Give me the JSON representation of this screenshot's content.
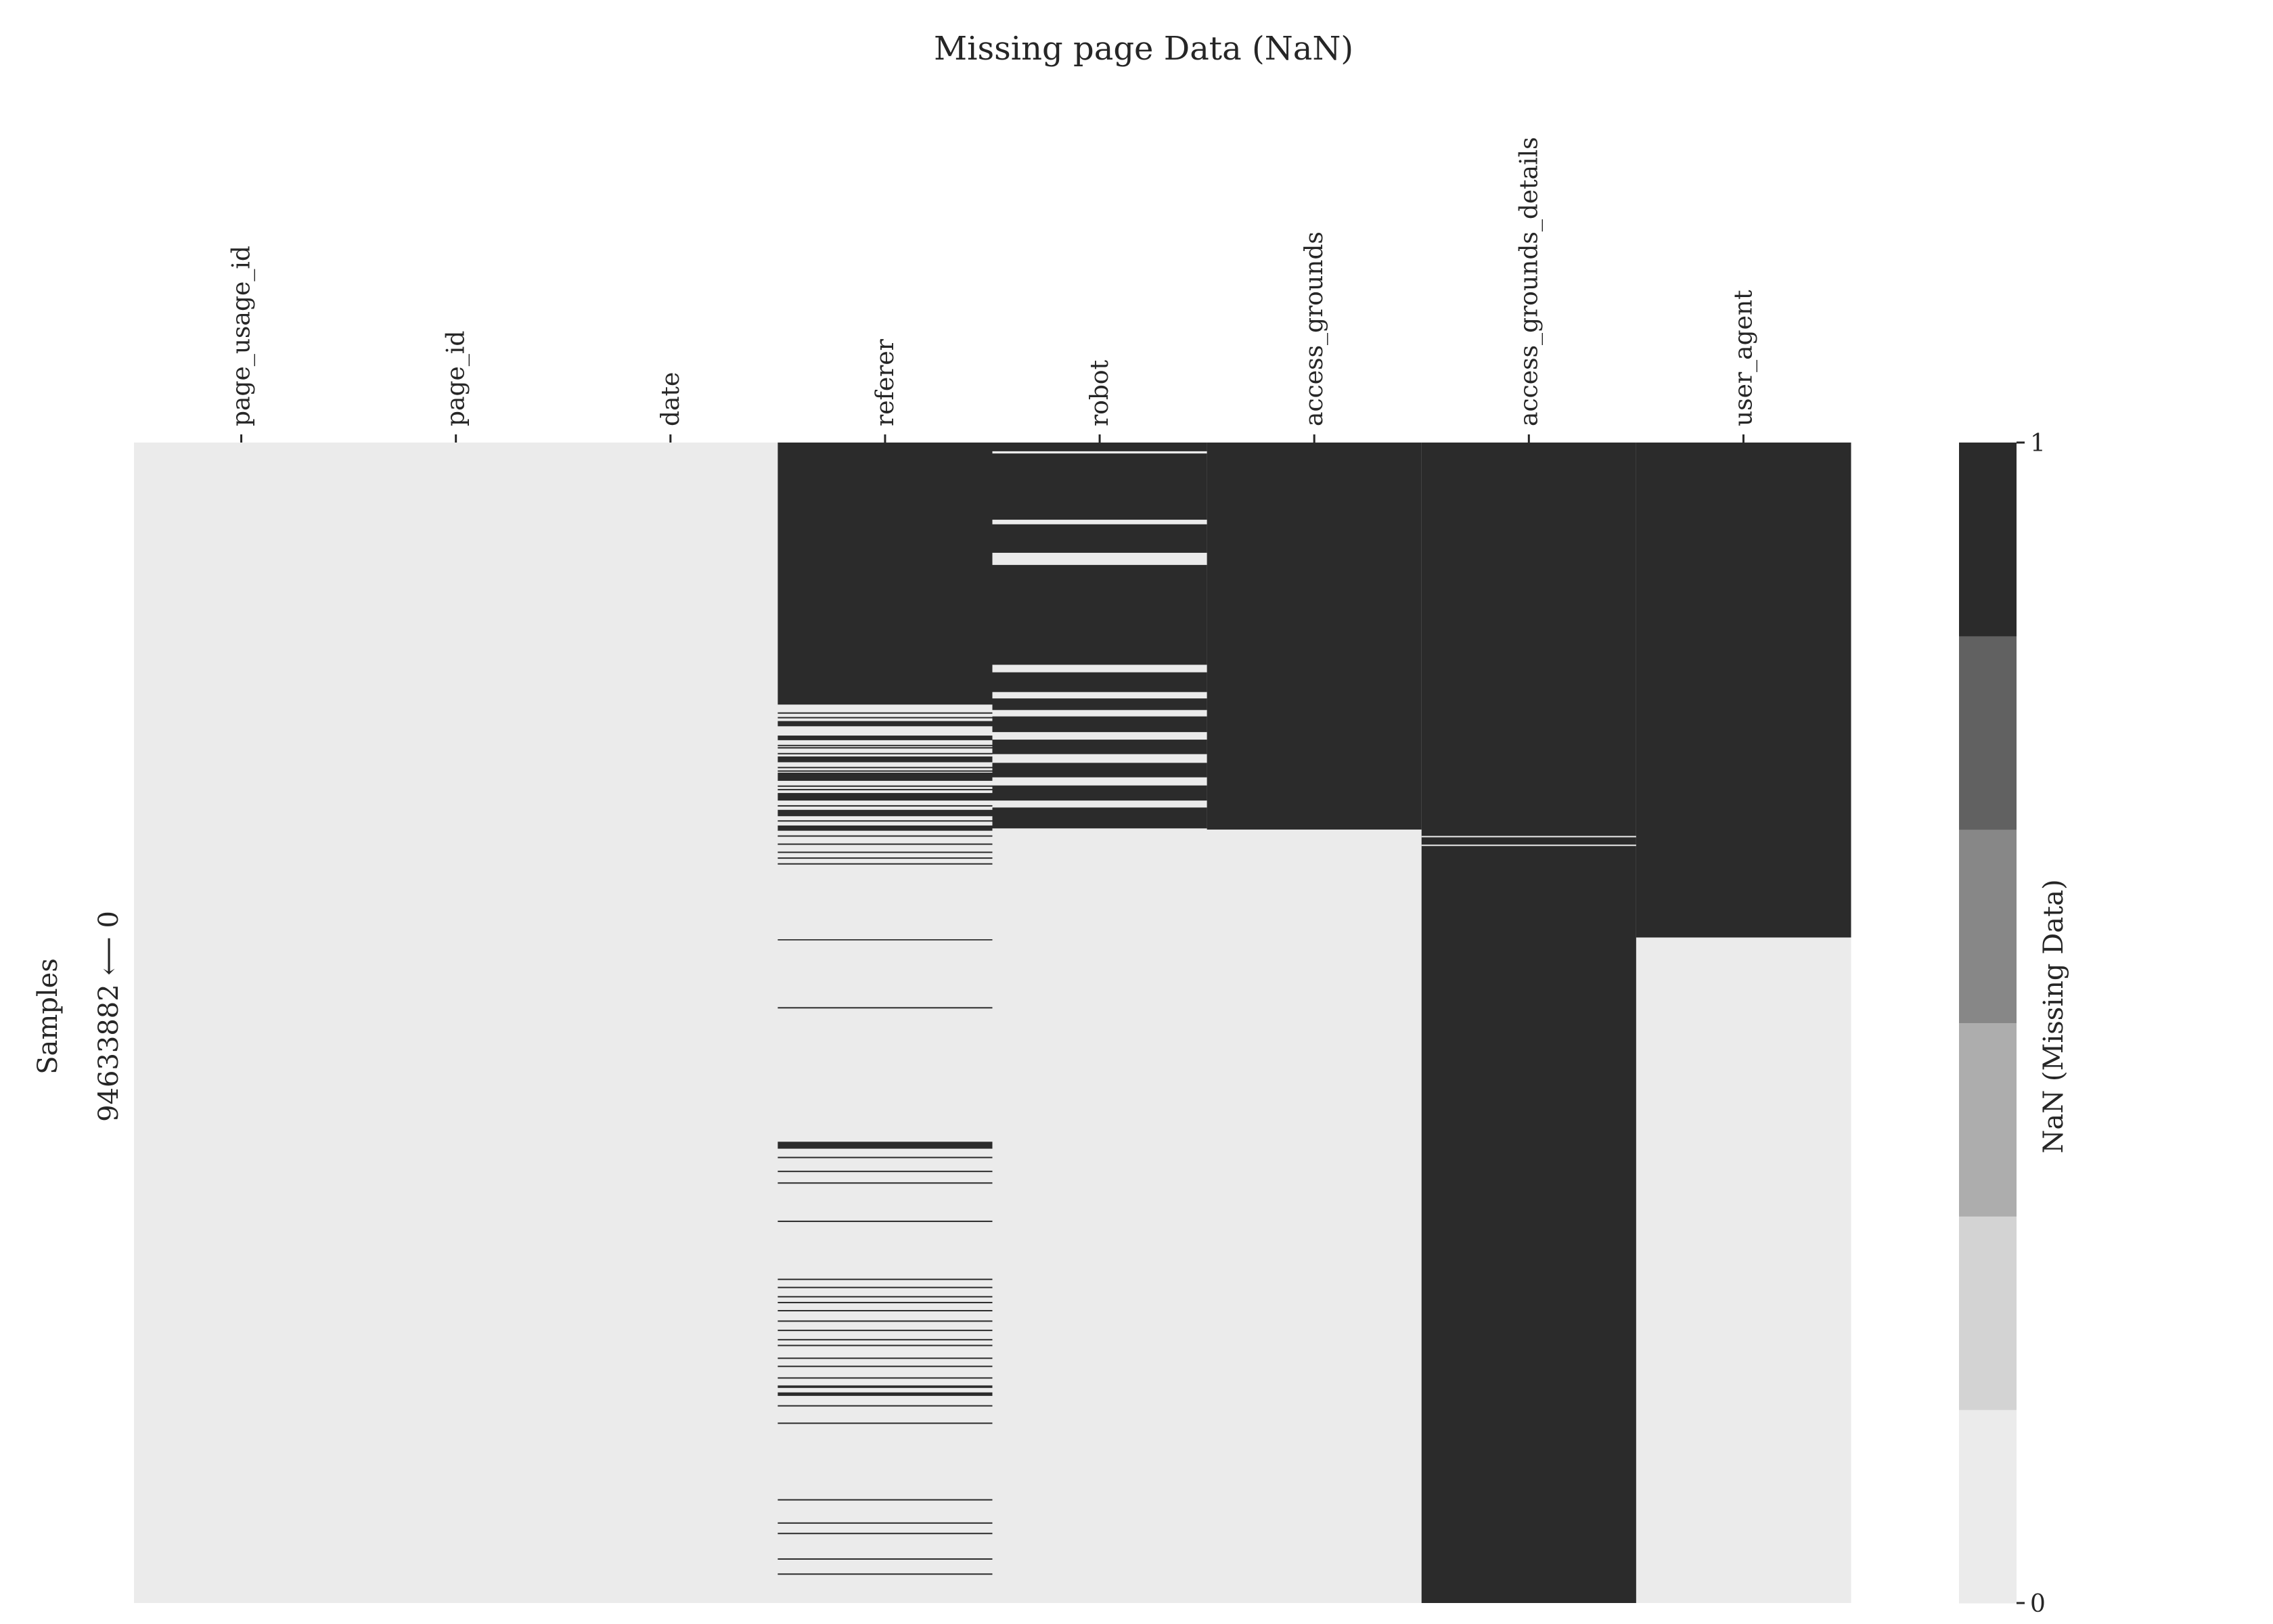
{
  "chart_data": {
    "type": "heatmap",
    "title": "Missing page Data (NaN)",
    "columns": [
      "page_usage_id",
      "page_id",
      "date",
      "referer",
      "robot",
      "access_grounds",
      "access_grounds_details",
      "user_agent"
    ],
    "ylabel": "Samples",
    "y_range_label": "94633882 ⟵ 0",
    "rows_total": 94633882,
    "colorbar": {
      "label": "NaN (Missing Data)",
      "ticks": [
        0,
        1
      ],
      "tick_labels": [
        "0",
        "1"
      ],
      "levels": 6,
      "colors": [
        "#ebebeb",
        "#d3d3d3",
        "#adadad",
        "#878787",
        "#616161",
        "#2b2b2b"
      ]
    },
    "missing_color": "#2b2b2b",
    "present_color": "#ebebeb",
    "missing_segments": {
      "page_usage_id": [],
      "page_id": [],
      "date": [],
      "referer": [
        [
          0,
          0.2258
        ],
        [
          0.24,
          0.2445
        ],
        [
          0.2525,
          0.2565
        ],
        [
          0.2705,
          0.2755
        ],
        [
          0.2845,
          0.2915
        ],
        [
          0.302,
          0.3085
        ],
        [
          0.3165,
          0.322
        ],
        [
          0.33,
          0.3345
        ],
        [
          0.428,
          0.429
        ],
        [
          0.6025,
          0.6085
        ],
        [
          0.8185,
          0.8215
        ]
      ],
      "robot": [
        [
          0,
          0.0075
        ],
        [
          0.0095,
          0.0665
        ],
        [
          0.0705,
          0.095
        ],
        [
          0.1055,
          0.1915
        ],
        [
          0.198,
          0.215
        ],
        [
          0.2205,
          0.2305
        ],
        [
          0.236,
          0.2495
        ],
        [
          0.256,
          0.2685
        ],
        [
          0.276,
          0.2885
        ],
        [
          0.2955,
          0.3085
        ],
        [
          0.3145,
          0.3325
        ]
      ],
      "access_grounds": [
        [
          0,
          0.3335
        ]
      ],
      "access_grounds_details": [
        [
          0,
          1
        ]
      ],
      "user_agent": [
        [
          0,
          0.4265
        ]
      ]
    },
    "present_lines": {
      "access_grounds_details": [
        0.339,
        0.3465
      ]
    },
    "missing_lines": {
      "referer": [
        0.2325,
        0.2365,
        0.2605,
        0.2625,
        0.2675,
        0.2795,
        0.2825,
        0.2955,
        0.2985,
        0.3125,
        0.3255,
        0.3385,
        0.3455,
        0.3525,
        0.3575,
        0.3625,
        0.4865,
        0.6155,
        0.6275,
        0.6375,
        0.6705,
        0.7205,
        0.7275,
        0.7355,
        0.7405,
        0.7475,
        0.7565,
        0.7645,
        0.7725,
        0.7775,
        0.7885,
        0.7955,
        0.8055,
        0.8125,
        0.8135,
        0.8295,
        0.8445,
        0.9105,
        0.9305,
        0.9395,
        0.9615,
        0.9745
      ],
      "robot": [
        0.0095,
        0.0705,
        0.1055
      ]
    }
  }
}
